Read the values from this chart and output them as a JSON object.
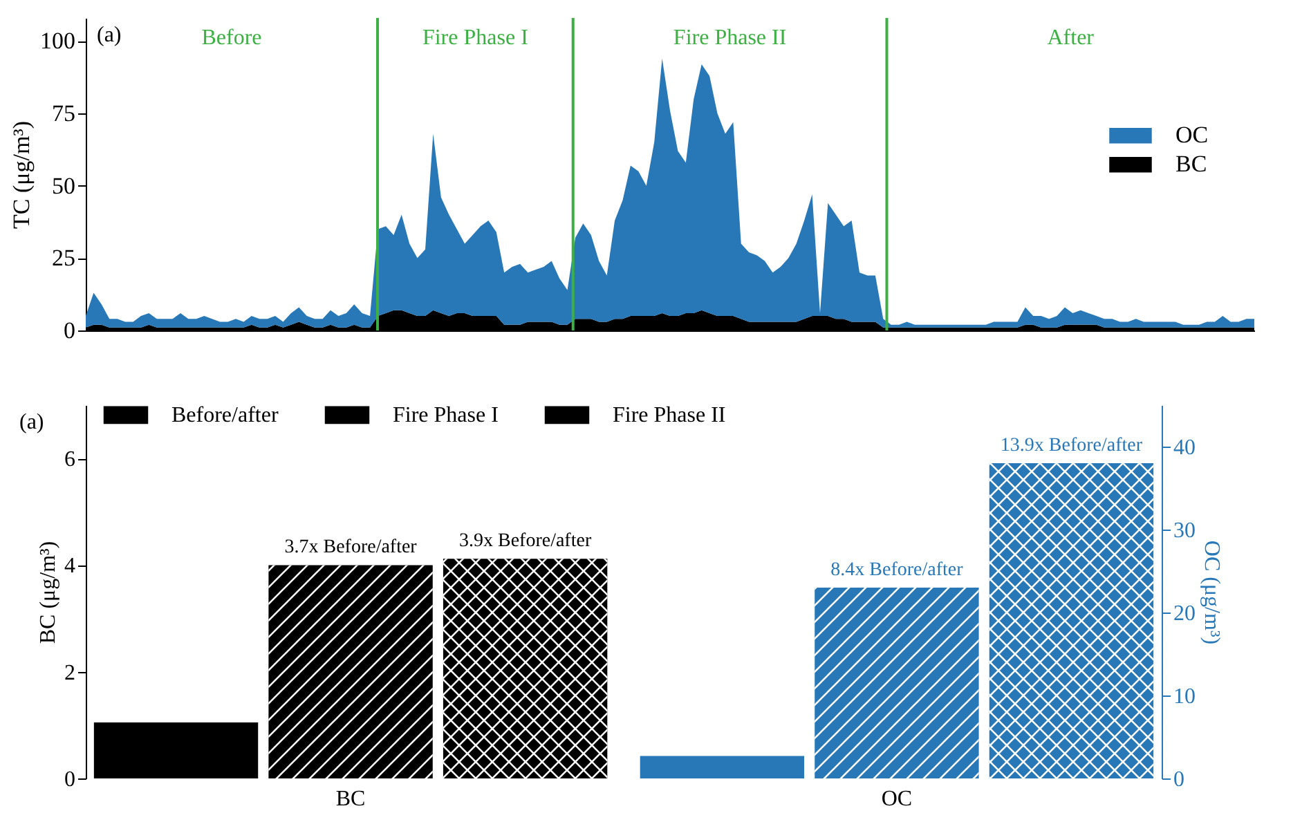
{
  "chart_data": [
    {
      "type": "area",
      "stacked": true,
      "ylabel": "TC (μg/m³)",
      "ylim": [
        0,
        108
      ],
      "yticks": [
        0,
        25,
        50,
        75,
        100
      ],
      "tick_labels": "y",
      "grid": false,
      "legend": "right",
      "categories": [
        null,
        null,
        null,
        null,
        null,
        null,
        null,
        null,
        null,
        null,
        null,
        null,
        null,
        null,
        null,
        null,
        null,
        null,
        null,
        null,
        null,
        null,
        null,
        null,
        null,
        null,
        null,
        null,
        null,
        null,
        null,
        null,
        null,
        null,
        null,
        null,
        null,
        null,
        null,
        null,
        null,
        null,
        null,
        null,
        null,
        null,
        null,
        null,
        null,
        null,
        null,
        null,
        null,
        null,
        null,
        null,
        null,
        null,
        null,
        null,
        null,
        null,
        null,
        null,
        null,
        null,
        null,
        null,
        null,
        null,
        null,
        null,
        null,
        null,
        null,
        null,
        null,
        null,
        null,
        null,
        null,
        null,
        null,
        null,
        null,
        null,
        null,
        null,
        null,
        null,
        null,
        null,
        null,
        null,
        null,
        null,
        null,
        null,
        null,
        null,
        null,
        null,
        null,
        null,
        null,
        null,
        null,
        null,
        null,
        null,
        null,
        null,
        null,
        null,
        null,
        null,
        null,
        null,
        null,
        null,
        null,
        null,
        null,
        null,
        null,
        null,
        null,
        null,
        null,
        null,
        null,
        null,
        null,
        null,
        null,
        null,
        null,
        null,
        null,
        null,
        null,
        null,
        null,
        null,
        null,
        null,
        null,
        null,
        null
      ],
      "series": [
        {
          "name": "BC",
          "color": "#000000",
          "values": [
            1,
            2,
            2,
            1,
            1,
            1,
            1,
            1,
            2,
            1,
            1,
            1,
            1,
            1,
            1,
            1,
            1,
            1,
            1,
            1,
            1,
            2,
            1,
            1,
            2,
            1,
            2,
            3,
            2,
            1,
            1,
            2,
            1,
            1,
            2,
            1,
            1,
            5,
            6,
            7,
            7,
            6,
            5,
            5,
            7,
            6,
            5,
            6,
            6,
            5,
            5,
            5,
            5,
            2,
            2,
            2,
            3,
            3,
            3,
            3,
            2,
            2,
            4,
            4,
            4,
            3,
            3,
            4,
            4,
            5,
            5,
            5,
            5,
            6,
            5,
            5,
            6,
            6,
            7,
            6,
            5,
            5,
            5,
            4,
            3,
            3,
            3,
            3,
            3,
            3,
            3,
            4,
            5,
            5,
            5,
            4,
            4,
            3,
            3,
            3,
            3,
            1,
            1,
            1,
            1,
            1,
            1,
            1,
            1,
            1,
            1,
            1,
            1,
            1,
            1,
            1,
            1,
            1,
            1,
            2,
            2,
            1,
            1,
            1,
            2,
            2,
            2,
            2,
            2,
            1,
            1,
            1,
            1,
            1,
            1,
            1,
            1,
            1,
            1,
            1,
            1,
            1,
            1,
            1,
            1,
            1,
            1,
            1,
            1
          ]
        },
        {
          "name": "OC",
          "color": "#2878b8",
          "values": [
            4,
            11,
            7,
            3,
            3,
            2,
            2,
            4,
            4,
            3,
            3,
            3,
            5,
            3,
            3,
            4,
            3,
            2,
            2,
            3,
            2,
            3,
            3,
            3,
            3,
            2,
            4,
            5,
            3,
            3,
            3,
            5,
            4,
            5,
            7,
            5,
            4,
            30,
            30,
            26,
            33,
            24,
            20,
            23,
            61,
            40,
            35,
            29,
            24,
            28,
            31,
            33,
            29,
            18,
            20,
            21,
            17,
            18,
            19,
            21,
            16,
            12,
            28,
            33,
            29,
            21,
            16,
            34,
            41,
            52,
            50,
            45,
            60,
            88,
            71,
            57,
            52,
            74,
            85,
            82,
            70,
            63,
            67,
            26,
            24,
            23,
            21,
            17,
            19,
            22,
            27,
            34,
            42,
            1,
            39,
            36,
            32,
            35,
            17,
            16,
            16,
            3,
            1,
            1,
            2,
            1,
            1,
            1,
            1,
            1,
            1,
            1,
            1,
            1,
            1,
            2,
            2,
            2,
            2,
            6,
            3,
            4,
            3,
            4,
            6,
            4,
            5,
            4,
            3,
            3,
            3,
            2,
            2,
            3,
            2,
            2,
            2,
            2,
            2,
            1,
            1,
            1,
            2,
            2,
            4,
            2,
            2,
            3,
            3
          ]
        }
      ],
      "annotations": [
        "(a)",
        "Before",
        "Fire Phase I",
        "Fire Phase II",
        "After"
      ]
    },
    {
      "type": "bar",
      "categories": [
        "BC",
        "OC"
      ],
      "ylabel": "BC (μg/m³)",
      "y2label": "OC (μg/m³)",
      "ylim": [
        0,
        7
      ],
      "yticks": [
        0,
        2,
        4,
        6
      ],
      "y2lim": [
        0,
        45
      ],
      "y2ticks": [
        0,
        10,
        20,
        30,
        40
      ],
      "legend": "top",
      "grid": false,
      "series": [
        {
          "name": "Before/after",
          "color": "#000000",
          "values": [
            1.05,
            null
          ]
        },
        {
          "name": "Fire Phase I",
          "color": "#000000",
          "values": [
            4.0,
            null
          ]
        },
        {
          "name": "Fire Phase II",
          "color": "#000000",
          "values": [
            4.12,
            null
          ]
        },
        {
          "color": "#2878b8",
          "axis": "y2",
          "values": [
            null,
            2.7
          ]
        },
        {
          "color": "#2878b8",
          "axis": "y2",
          "values": [
            null,
            23.0
          ]
        },
        {
          "color": "#2878b8",
          "axis": "y2",
          "values": [
            null,
            38.0
          ]
        }
      ],
      "annotations": [
        "(a)",
        "3.7x Before/after",
        "3.9x Before/after",
        "8.4x Before/after",
        "13.9x Before/after"
      ]
    }
  ]
}
